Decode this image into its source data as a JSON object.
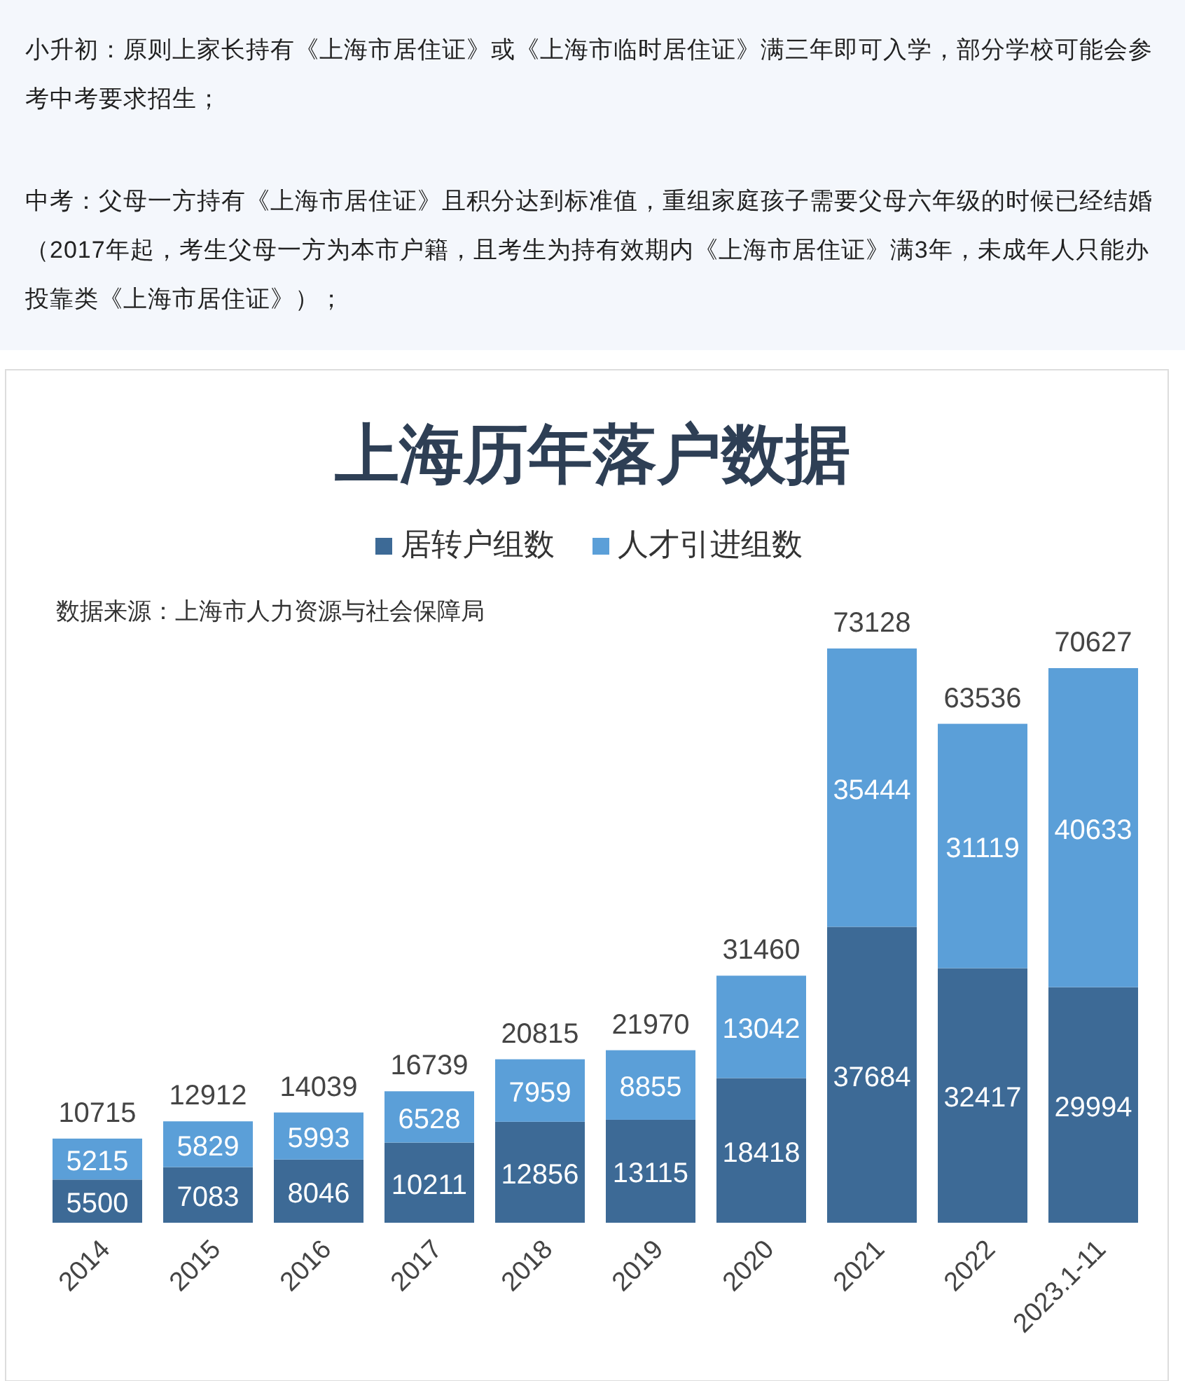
{
  "chart_data": {
    "type": "bar",
    "title": "上海历年落户数据",
    "stacked": true,
    "data_labels": true,
    "legend": "top",
    "categories": [
      "2014",
      "2015",
      "2016",
      "2017",
      "2018",
      "2019",
      "2020",
      "2021",
      "2022",
      "2023.1-11"
    ],
    "series": [
      {
        "name": "居转户组数",
        "color": "#3d6a96",
        "values": [
          5500,
          7083,
          8046,
          10211,
          12856,
          13115,
          18418,
          37684,
          32417,
          29994
        ]
      },
      {
        "name": "人才引进组数",
        "color": "#5b9fd8",
        "values": [
          5215,
          5829,
          5993,
          6528,
          7959,
          8855,
          13042,
          35444,
          31119,
          40633
        ]
      }
    ],
    "totals": [
      "10715",
      "12912",
      "14039",
      "16739",
      "20815",
      "21970",
      "31460",
      "73128",
      "63536",
      "70627"
    ],
    "annotations": [
      "小升初：原则上家长持有《上海市居住证》或《上海市临时居住证》满三年即可入学，部分学校可能会参考中考要求招生；",
      "中考：父母一方持有《上海市居住证》且积分达到标准值，重组家庭孩子需要父母六年级的时候已经结婚（2017年起，考生父母一方为本市户籍，且考生为持有效期内《上海市居住证》满3年，未成年人只能办投靠类《上海市居住证》）；",
      "数据来源：上海市人力资源与社会保障局"
    ]
  }
}
